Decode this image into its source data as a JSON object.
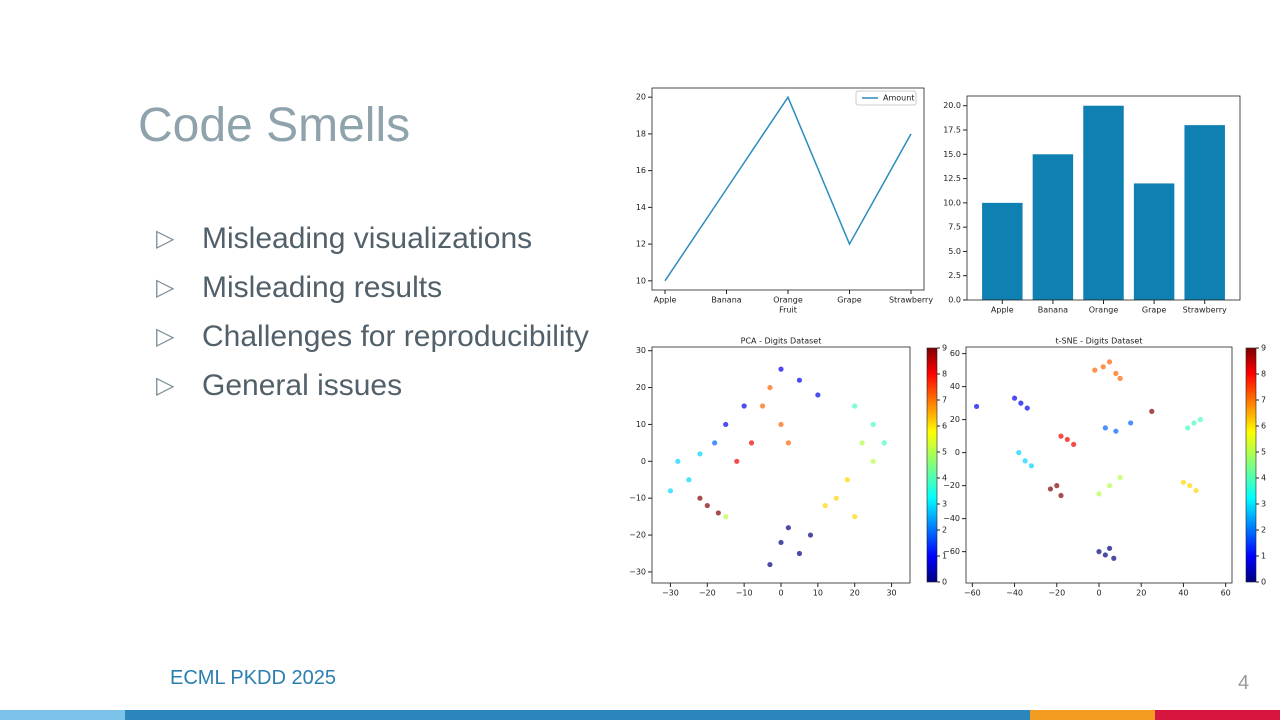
{
  "slide": {
    "title": "Code Smells",
    "bullets": [
      "Misleading visualizations",
      "Misleading results",
      "Challenges for reproducibility",
      "General issues"
    ],
    "footer": "ECML PKDD 2025",
    "page_number": "4"
  },
  "chart_data": [
    {
      "type": "line",
      "categories": [
        "Apple",
        "Banana",
        "Orange",
        "Grape",
        "Strawberry"
      ],
      "xlabel": "Fruit",
      "series": [
        {
          "name": "Amount",
          "color": "#2b8cbe",
          "values": [
            10,
            15,
            20,
            12,
            18
          ]
        }
      ],
      "ylim": [
        9.5,
        20.5
      ],
      "yticks": [
        10,
        12,
        14,
        16,
        18,
        20
      ],
      "legend": "upper right"
    },
    {
      "type": "bar",
      "categories": [
        "Apple",
        "Banana",
        "Orange",
        "Grape",
        "Strawberry"
      ],
      "values": [
        10,
        15,
        20,
        12,
        18
      ],
      "color": "#0f80b2",
      "ylim": [
        0,
        21
      ],
      "yticks": [
        {
          "value": 0,
          "label": "0.0"
        },
        {
          "value": 2.5,
          "label": "2.5"
        },
        {
          "value": 5,
          "label": "5.0"
        },
        {
          "value": 7.5,
          "label": "7.5"
        },
        {
          "value": 10,
          "label": "10.0"
        },
        {
          "value": 12.5,
          "label": "12.5"
        },
        {
          "value": 15,
          "label": "15.0"
        },
        {
          "value": 17.5,
          "label": "17.5"
        },
        {
          "value": 20,
          "label": "20.0"
        }
      ]
    },
    {
      "type": "scatter",
      "title": "PCA - Digits Dataset",
      "colormap": "jet",
      "x": [
        0,
        5,
        -3,
        8,
        2,
        -20,
        -22,
        -17,
        -25,
        -28,
        -22,
        -30,
        -15,
        -10,
        -18,
        5,
        10,
        0,
        -5,
        0,
        -3,
        2,
        -8,
        -12,
        15,
        18,
        20,
        12,
        25,
        22,
        -15,
        25,
        20,
        28
      ],
      "y": [
        -22,
        -25,
        -28,
        -20,
        -18,
        -12,
        -10,
        -14,
        -5,
        0,
        2,
        -8,
        10,
        15,
        5,
        22,
        18,
        25,
        15,
        10,
        20,
        5,
        5,
        0,
        -10,
        -5,
        -15,
        -12,
        0,
        5,
        -15,
        10,
        15,
        5
      ],
      "c": [
        0,
        0,
        0,
        0,
        0,
        9,
        9,
        9,
        3,
        3,
        3,
        3,
        1,
        1,
        2,
        1,
        1,
        1,
        7,
        7,
        7,
        7,
        8,
        8,
        6,
        6,
        6,
        6,
        5,
        5,
        5,
        4,
        4,
        4
      ],
      "xlim": [
        -35,
        35
      ],
      "ylim": [
        -33,
        31
      ],
      "xticks": [
        {
          "value": -30,
          "label": "−30"
        },
        {
          "value": -20,
          "label": "−20"
        },
        {
          "value": -10,
          "label": "−10"
        },
        0,
        10,
        20,
        30
      ],
      "yticks": [
        {
          "value": -30,
          "label": "−30"
        },
        {
          "value": -20,
          "label": "−20"
        },
        {
          "value": -10,
          "label": "−10"
        },
        0,
        10,
        20,
        30
      ],
      "colorbar": {
        "clim": [
          0,
          9
        ],
        "ticks": [
          0,
          1,
          2,
          3,
          4,
          5,
          6,
          7,
          8,
          9
        ]
      }
    },
    {
      "type": "scatter",
      "title": "t-SNE - Digits Dataset",
      "colormap": "jet",
      "x": [
        3,
        7,
        5,
        0,
        2,
        8,
        5,
        -2,
        10,
        -20,
        -18,
        -23,
        25,
        -15,
        -12,
        -18,
        -35,
        -38,
        -32,
        -37,
        -40,
        -34,
        -58,
        43,
        40,
        46,
        5,
        0,
        10,
        45,
        42,
        48,
        3,
        15,
        8
      ],
      "y": [
        -62,
        -64,
        -58,
        -60,
        52,
        48,
        55,
        50,
        45,
        -20,
        -26,
        -22,
        25,
        8,
        5,
        10,
        -5,
        0,
        -8,
        30,
        33,
        27,
        28,
        -20,
        -18,
        -23,
        -20,
        -25,
        -15,
        18,
        15,
        20,
        15,
        18,
        13
      ],
      "c": [
        0,
        0,
        0,
        0,
        7,
        7,
        7,
        7,
        7,
        9,
        9,
        9,
        9,
        8,
        8,
        8,
        3,
        3,
        3,
        1,
        1,
        1,
        1,
        6,
        6,
        6,
        5,
        5,
        5,
        4,
        4,
        4,
        2,
        2,
        2
      ],
      "xlim": [
        -63,
        63
      ],
      "ylim": [
        -79,
        64
      ],
      "xticks": [
        {
          "value": -60,
          "label": "−60"
        },
        {
          "value": -40,
          "label": "−40"
        },
        {
          "value": -20,
          "label": "−20"
        },
        0,
        20,
        40,
        60
      ],
      "yticks": [
        {
          "value": -60,
          "label": "−60"
        },
        {
          "value": -40,
          "label": "−40"
        },
        {
          "value": -20,
          "label": "−20"
        },
        0,
        20,
        40,
        60
      ],
      "colorbar": {
        "clim": [
          0,
          9
        ],
        "ticks": [
          0,
          1,
          2,
          3,
          4,
          5,
          6,
          7,
          8,
          9
        ]
      }
    }
  ]
}
